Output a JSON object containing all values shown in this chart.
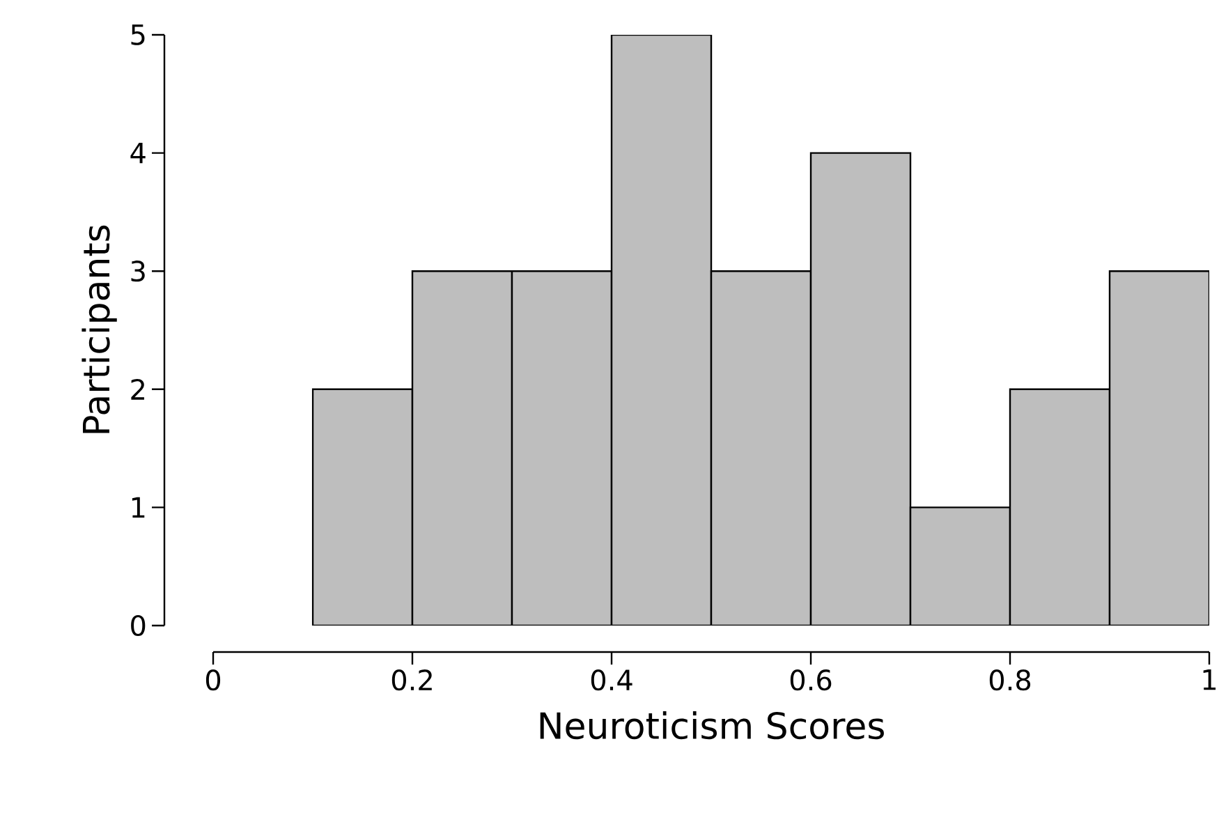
{
  "chart_data": {
    "type": "histogram",
    "xlabel": "Neuroticism Scores",
    "ylabel": "Participants",
    "bins": [
      0.1,
      0.2,
      0.3,
      0.4,
      0.5,
      0.6,
      0.7,
      0.8,
      0.9,
      1.0
    ],
    "values": [
      2,
      3,
      3,
      5,
      3,
      4,
      1,
      2,
      3
    ],
    "color": "#bebebe",
    "xlim": [
      0,
      1
    ],
    "xticks": [
      0,
      0.2,
      0.4,
      0.6,
      0.8,
      1
    ],
    "ylim": [
      0,
      5
    ],
    "yticks": [
      0,
      1,
      2,
      3,
      4,
      5
    ],
    "grid": false
  }
}
